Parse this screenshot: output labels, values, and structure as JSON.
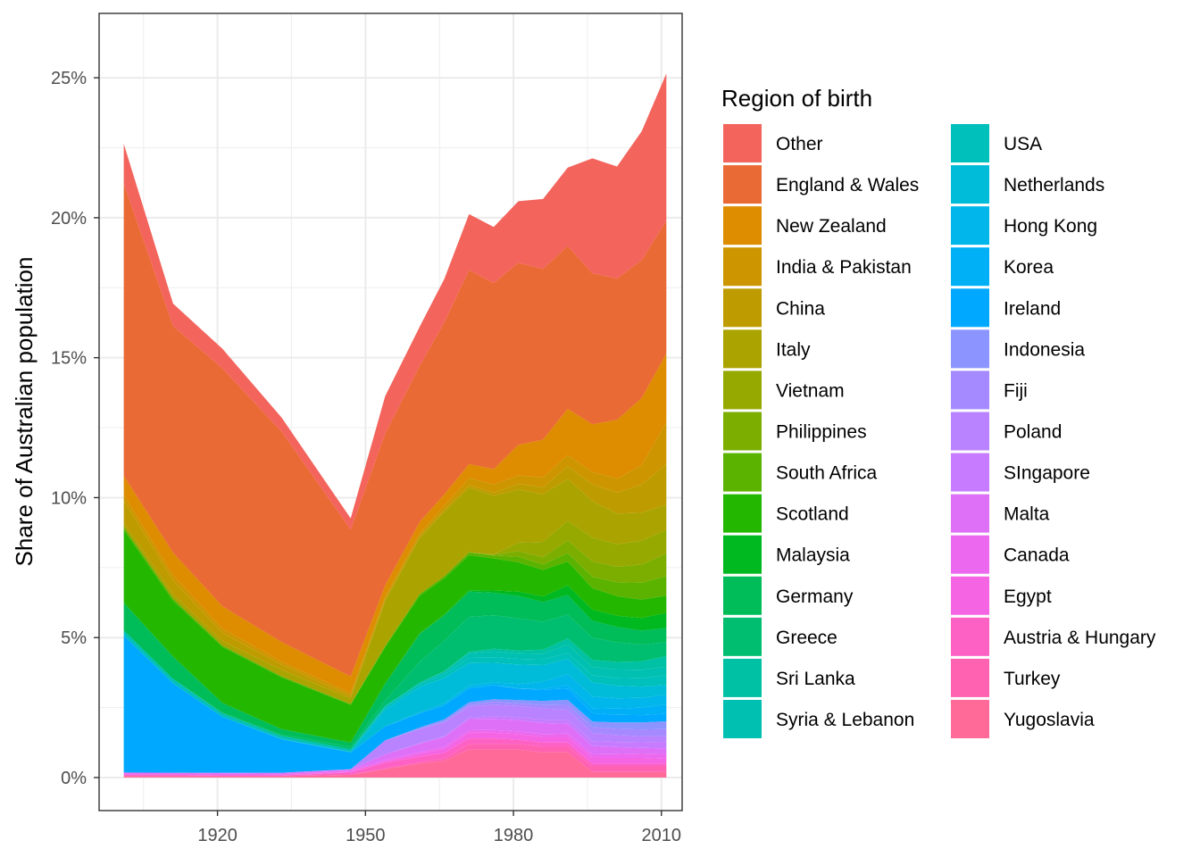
{
  "chart_data": {
    "type": "area",
    "stacked": true,
    "ylabel": "Share of Australian population",
    "xlabel": "",
    "xlim": [
      1901,
      2011
    ],
    "ylim": [
      0,
      0.26
    ],
    "x_ticks": [
      1920,
      1950,
      1980,
      2010
    ],
    "x_tick_labels": [
      "1920",
      "1950",
      "1980",
      "2010"
    ],
    "y_ticks": [
      0,
      0.05,
      0.1,
      0.15,
      0.2,
      0.25
    ],
    "y_tick_labels": [
      "0%",
      "5%",
      "10%",
      "15%",
      "20%",
      "25%"
    ],
    "grid": true,
    "legend_title": "Region of birth",
    "legend_position": "right",
    "x": [
      1901,
      1911,
      1921,
      1933,
      1947,
      1954,
      1961,
      1966,
      1971,
      1976,
      1981,
      1986,
      1991,
      1996,
      2001,
      2006,
      2011
    ],
    "series": [
      {
        "name": "Yugoslavia",
        "color": "#FF6A98",
        "values": [
          0.0005,
          0.0005,
          0.0005,
          0.0005,
          0.001,
          0.003,
          0.005,
          0.006,
          0.01,
          0.01,
          0.01,
          0.009,
          0.009,
          0.002,
          0.002,
          0.002,
          0.002
        ]
      },
      {
        "name": "Turkey",
        "color": "#FF62B0",
        "values": [
          0,
          0,
          0,
          0,
          0,
          0.0003,
          0.0005,
          0.0008,
          0.002,
          0.002,
          0.002,
          0.002,
          0.002,
          0.002,
          0.002,
          0.002,
          0.002
        ]
      },
      {
        "name": "Austria & Hungary",
        "color": "#FD61C4",
        "values": [
          0.0005,
          0.0005,
          0.0003,
          0.0003,
          0.0008,
          0.002,
          0.002,
          0.002,
          0.002,
          0.002,
          0.0015,
          0.0015,
          0.0015,
          0.001,
          0.001,
          0.001,
          0.001
        ]
      },
      {
        "name": "Egypt",
        "color": "#F564E3",
        "values": [
          0,
          0,
          0,
          0,
          0.0003,
          0.0005,
          0.001,
          0.0015,
          0.002,
          0.002,
          0.002,
          0.002,
          0.002,
          0.002,
          0.002,
          0.002,
          0.0017
        ]
      },
      {
        "name": "Canada",
        "color": "#EC69EF",
        "values": [
          0.0008,
          0.0007,
          0.0006,
          0.0004,
          0.0004,
          0.0005,
          0.0006,
          0.0007,
          0.0009,
          0.001,
          0.001,
          0.001,
          0.0012,
          0.0013,
          0.0014,
          0.0016,
          0.0017
        ]
      },
      {
        "name": "Malta",
        "color": "#DE70F8",
        "values": [
          0,
          0,
          0.0003,
          0.0005,
          0.0004,
          0.002,
          0.003,
          0.0035,
          0.004,
          0.004,
          0.004,
          0.004,
          0.0035,
          0.003,
          0.0025,
          0.002,
          0.002
        ]
      },
      {
        "name": "SIngapore",
        "color": "#C77CFF",
        "values": [
          0,
          0,
          0,
          0,
          0,
          0,
          0.0002,
          0.0003,
          0.0005,
          0.001,
          0.001,
          0.0012,
          0.0015,
          0.0017,
          0.0018,
          0.002,
          0.0024
        ]
      },
      {
        "name": "Poland",
        "color": "#B983FF",
        "values": [
          0,
          0,
          0,
          0,
          0.0001,
          0.005,
          0.005,
          0.005,
          0.004,
          0.004,
          0.004,
          0.004,
          0.0035,
          0.003,
          0.0025,
          0.0022,
          0.002
        ]
      },
      {
        "name": "Fiji",
        "color": "#A58AFF",
        "values": [
          0,
          0,
          0,
          0,
          0,
          0,
          0.0001,
          0.0002,
          0.0005,
          0.001,
          0.001,
          0.0012,
          0.0018,
          0.002,
          0.0022,
          0.0024,
          0.0025
        ]
      },
      {
        "name": "Indonesia",
        "color": "#8C94FF",
        "values": [
          0,
          0,
          0,
          0,
          0,
          0,
          0.0005,
          0.0008,
          0.001,
          0.001,
          0.0012,
          0.0015,
          0.0018,
          0.002,
          0.0023,
          0.0025,
          0.0028
        ]
      },
      {
        "name": "Ireland",
        "color": "#00A9FF",
        "values": [
          0.049,
          0.032,
          0.02,
          0.012,
          0.006,
          0.005,
          0.005,
          0.005,
          0.005,
          0.005,
          0.004,
          0.004,
          0.004,
          0.003,
          0.0027,
          0.0026,
          0.0027
        ]
      },
      {
        "name": "Korea",
        "color": "#00B0F6",
        "values": [
          0,
          0,
          0,
          0,
          0,
          0,
          0,
          0,
          0,
          0,
          0.0002,
          0.0003,
          0.0012,
          0.0018,
          0.0022,
          0.0027,
          0.0033
        ]
      },
      {
        "name": "Hong Kong",
        "color": "#00B6EB",
        "values": [
          0,
          0,
          0,
          0,
          0,
          0,
          0.0005,
          0.0008,
          0.001,
          0.001,
          0.0015,
          0.0025,
          0.004,
          0.0042,
          0.0037,
          0.0035,
          0.0035
        ]
      },
      {
        "name": "Netherlands",
        "color": "#00BCD8",
        "values": [
          0,
          0,
          0,
          0.0001,
          0.0002,
          0.006,
          0.009,
          0.009,
          0.008,
          0.007,
          0.007,
          0.006,
          0.0055,
          0.005,
          0.0045,
          0.004,
          0.0035
        ]
      },
      {
        "name": "USA",
        "color": "#00C0BB",
        "values": [
          0.0017,
          0.0015,
          0.0012,
          0.001,
          0.0008,
          0.001,
          0.001,
          0.0012,
          0.002,
          0.002,
          0.002,
          0.002,
          0.002,
          0.0025,
          0.0028,
          0.003,
          0.0035
        ]
      },
      {
        "name": "Syria & Lebanon",
        "color": "#00C0B2",
        "values": [
          0,
          0,
          0,
          0,
          0,
          0.0003,
          0.0005,
          0.001,
          0.0015,
          0.002,
          0.002,
          0.002,
          0.003,
          0.003,
          0.003,
          0.003,
          0.003
        ]
      },
      {
        "name": "Sri Lanka",
        "color": "#00C1A3",
        "values": [
          0,
          0,
          0,
          0,
          0,
          0,
          0,
          0.0002,
          0.0005,
          0.001,
          0.001,
          0.0015,
          0.0022,
          0.0025,
          0.0027,
          0.003,
          0.0038
        ]
      },
      {
        "name": "Greece",
        "color": "#00BE70",
        "values": [
          0,
          0,
          0.0003,
          0.0005,
          0.001,
          0.002,
          0.0075,
          0.011,
          0.0125,
          0.012,
          0.0115,
          0.01,
          0.0085,
          0.008,
          0.007,
          0.006,
          0.005
        ]
      },
      {
        "name": "Germany",
        "color": "#00BC59",
        "values": [
          0.01,
          0.008,
          0.0035,
          0.002,
          0.0015,
          0.006,
          0.01,
          0.009,
          0.009,
          0.008,
          0.008,
          0.007,
          0.007,
          0.006,
          0.0055,
          0.005,
          0.005
        ]
      },
      {
        "name": "Malaysia",
        "color": "#00B81F",
        "values": [
          0,
          0,
          0,
          0,
          0,
          0,
          0.0001,
          0.0002,
          0.0005,
          0.0008,
          0.0015,
          0.002,
          0.0035,
          0.004,
          0.004,
          0.0045,
          0.0055
        ]
      },
      {
        "name": "Scotland",
        "color": "#24B700",
        "values": [
          0.026,
          0.02,
          0.02,
          0.0185,
          0.0135,
          0.013,
          0.0135,
          0.013,
          0.0125,
          0.0115,
          0.0105,
          0.0095,
          0.0085,
          0.0077,
          0.007,
          0.0066,
          0.0061
        ]
      },
      {
        "name": "South Africa",
        "color": "#5BB300",
        "values": [
          0.001,
          0.0008,
          0.0005,
          0.0004,
          0.0003,
          0.0005,
          0.0006,
          0.0008,
          0.001,
          0.001,
          0.002,
          0.002,
          0.003,
          0.004,
          0.005,
          0.006,
          0.007
        ]
      },
      {
        "name": "Philippines",
        "color": "#7CAE00",
        "values": [
          0,
          0,
          0,
          0,
          0,
          0,
          0,
          0,
          0.0001,
          0.0003,
          0.002,
          0.0025,
          0.0045,
          0.0055,
          0.0055,
          0.0065,
          0.008
        ]
      },
      {
        "name": "Vietnam",
        "color": "#96A900",
        "values": [
          0,
          0,
          0,
          0,
          0,
          0,
          0,
          0,
          0,
          0.0001,
          0.003,
          0.0055,
          0.007,
          0.0085,
          0.008,
          0.0085,
          0.0085
        ]
      },
      {
        "name": "Italy",
        "color": "#ABA300",
        "values": [
          0.0015,
          0.0015,
          0.0015,
          0.0023,
          0.002,
          0.016,
          0.02,
          0.023,
          0.023,
          0.021,
          0.019,
          0.017,
          0.015,
          0.013,
          0.011,
          0.01,
          0.009
        ]
      },
      {
        "name": "China",
        "color": "#BE9C00",
        "values": [
          0.008,
          0.005,
          0.003,
          0.0018,
          0.0008,
          0.0006,
          0.0006,
          0.0007,
          0.001,
          0.001,
          0.002,
          0.0025,
          0.0045,
          0.006,
          0.0075,
          0.01,
          0.0145
        ]
      },
      {
        "name": "India & Pakistan",
        "color": "#CD9600",
        "values": [
          0.002,
          0.0018,
          0.0015,
          0.0011,
          0.001,
          0.001,
          0.0011,
          0.0015,
          0.0025,
          0.003,
          0.003,
          0.0035,
          0.004,
          0.0045,
          0.005,
          0.007,
          0.015
        ]
      },
      {
        "name": "New Zealand",
        "color": "#DE8C00",
        "values": [
          0.0068,
          0.008,
          0.008,
          0.007,
          0.006,
          0.004,
          0.004,
          0.004,
          0.005,
          0.0055,
          0.011,
          0.0135,
          0.0165,
          0.017,
          0.021,
          0.024,
          0.0245
        ]
      },
      {
        "name": "England & Wales",
        "color": "#EA6A35",
        "values": [
          0.1045,
          0.081,
          0.085,
          0.0752,
          0.0525,
          0.0542,
          0.0558,
          0.0615,
          0.0693,
          0.0665,
          0.065,
          0.061,
          0.0582,
          0.054,
          0.0505,
          0.0493,
          0.0475
        ]
      },
      {
        "name": "Other",
        "color": "#F3645D",
        "values": [
          0.0141,
          0.008,
          0.007,
          0.005,
          0.004,
          0.0134,
          0.014,
          0.0155,
          0.02,
          0.02,
          0.022,
          0.025,
          0.028,
          0.041,
          0.04,
          0.046,
          0.0525
        ]
      }
    ]
  }
}
